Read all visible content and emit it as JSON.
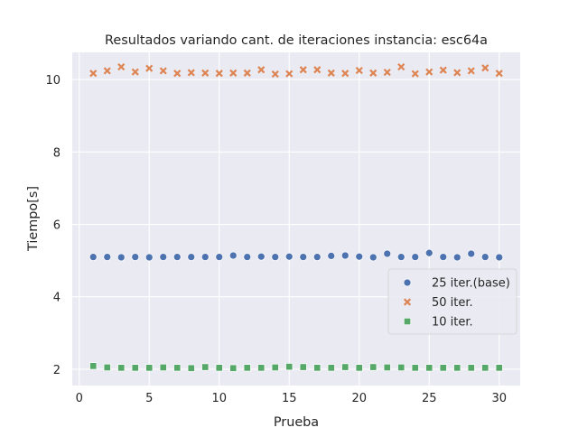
{
  "chart_data": {
    "type": "scatter",
    "title": "Resultados variando cant. de iteraciones instancia: esc64a",
    "xlabel": "Prueba",
    "ylabel": "Tiempo[s]",
    "xlim": [
      -0.5,
      31.5
    ],
    "ylim": [
      1.55,
      10.75
    ],
    "xticks": [
      0,
      5,
      10,
      15,
      20,
      25,
      30
    ],
    "yticks": [
      2,
      4,
      6,
      8,
      10
    ],
    "grid": true,
    "legend_position": "center-right",
    "x": [
      1,
      2,
      3,
      4,
      5,
      6,
      7,
      8,
      9,
      10,
      11,
      12,
      13,
      14,
      15,
      16,
      17,
      18,
      19,
      20,
      21,
      22,
      23,
      24,
      25,
      26,
      27,
      28,
      29,
      30
    ],
    "series": [
      {
        "name": "25 iter.(base)",
        "marker": "circle",
        "color": "#4c72b0",
        "values": [
          5.1,
          5.1,
          5.09,
          5.1,
          5.09,
          5.1,
          5.1,
          5.1,
          5.1,
          5.1,
          5.14,
          5.1,
          5.11,
          5.1,
          5.11,
          5.1,
          5.1,
          5.13,
          5.14,
          5.11,
          5.09,
          5.19,
          5.1,
          5.1,
          5.21,
          5.1,
          5.09,
          5.19,
          5.1,
          5.09
        ]
      },
      {
        "name": "50 iter.",
        "marker": "x",
        "color": "#dd8452",
        "values": [
          10.17,
          10.24,
          10.35,
          10.21,
          10.31,
          10.24,
          10.17,
          10.19,
          10.18,
          10.17,
          10.18,
          10.18,
          10.27,
          10.15,
          10.16,
          10.27,
          10.27,
          10.18,
          10.17,
          10.25,
          10.18,
          10.2,
          10.35,
          10.16,
          10.21,
          10.26,
          10.19,
          10.24,
          10.32,
          10.17
        ]
      },
      {
        "name": "10 iter.",
        "marker": "square",
        "color": "#55a868",
        "values": [
          2.09,
          2.05,
          2.04,
          2.04,
          2.04,
          2.05,
          2.04,
          2.03,
          2.06,
          2.04,
          2.03,
          2.04,
          2.04,
          2.05,
          2.07,
          2.06,
          2.04,
          2.04,
          2.06,
          2.04,
          2.06,
          2.05,
          2.05,
          2.04,
          2.04,
          2.04,
          2.04,
          2.04,
          2.04,
          2.04
        ]
      }
    ]
  }
}
